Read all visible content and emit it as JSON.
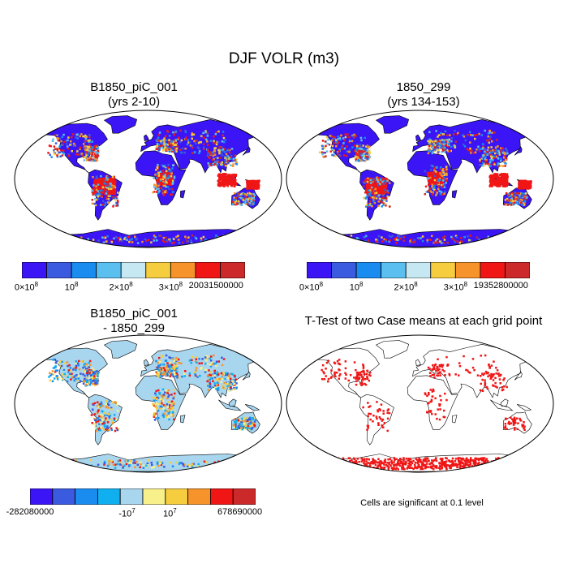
{
  "figure_title": "DJF VOLR (m3)",
  "panels": {
    "top_left": {
      "title_line1": "B1850_piC_001",
      "title_line2": "(yrs 2-10)"
    },
    "top_right": {
      "title_line1": "1850_299",
      "title_line2": "(yrs 134-153)"
    },
    "bottom_left": {
      "title_line1": "B1850_piC_001",
      "title_line2": "- 1850_299"
    },
    "bottom_right": {
      "title_line1": "T-Test of two Case means at each grid point",
      "title_line2": ""
    }
  },
  "colorbars": {
    "top_left": {
      "colors": [
        "#3b15f5",
        "#3a5ae0",
        "#1a8cf0",
        "#5bbff0",
        "#c6e8f2",
        "#f6cd3e",
        "#f6932a",
        "#f01616",
        "#cc2a2a"
      ],
      "labels": [
        "0×10",
        "10",
        "2×10",
        "3×10",
        "20031500000"
      ],
      "label_sups": [
        "8",
        "8",
        "8",
        "8",
        ""
      ]
    },
    "top_right": {
      "colors": [
        "#3b15f5",
        "#3a5ae0",
        "#1a8cf0",
        "#5bbff0",
        "#c6e8f2",
        "#f6cd3e",
        "#f6932a",
        "#f01616",
        "#cc2a2a"
      ],
      "labels": [
        "0×10",
        "10",
        "2×10",
        "3×10",
        "19352800000"
      ],
      "label_sups": [
        "8",
        "8",
        "8",
        "8",
        ""
      ]
    },
    "bottom_left": {
      "colors": [
        "#3b15f5",
        "#3a5ae0",
        "#1a8cf0",
        "#10b0f0",
        "#a8d6ef",
        "#f8f08a",
        "#f6cd3e",
        "#f6932a",
        "#f01616",
        "#cc2a2a"
      ],
      "labels": [
        "-282080000",
        "-10",
        "10",
        "678690000"
      ],
      "label_sups": [
        "",
        "7",
        "7",
        ""
      ]
    }
  },
  "note": "Cells are significant at 0.1 level",
  "map_colors": {
    "ocean": "#ffffff",
    "land_low": "#3b15f5",
    "diff_base": "#a8d6ef",
    "significant": "#f01616"
  }
}
